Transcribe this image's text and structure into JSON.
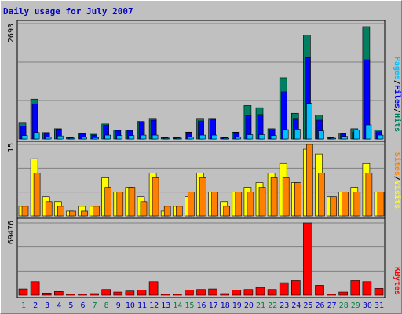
{
  "title": "Daily usage for July 2007",
  "colors": {
    "hits": "#008060",
    "files": "#0000ff",
    "pages": "#00c0ff",
    "visits": "#ffff00",
    "sites": "#ff8000",
    "kbytes": "#ff0000",
    "axis_text": "#000000",
    "weekend_text": "#008040",
    "weekday_text": "#0000c0"
  },
  "legends": {
    "top": [
      {
        "label": "Pages",
        "color": "#00c0ff"
      },
      {
        "label": "/",
        "color": "#000000"
      },
      {
        "label": "Files",
        "color": "#0000ff"
      },
      {
        "label": "/",
        "color": "#000000"
      },
      {
        "label": "Hits",
        "color": "#008060"
      }
    ],
    "middle": [
      {
        "label": "Sites",
        "color": "#ff8000"
      },
      {
        "label": "/",
        "color": "#000000"
      },
      {
        "label": "Visits",
        "color": "#ffff00"
      }
    ],
    "bottom": [
      {
        "label": "KBytes",
        "color": "#ff0000"
      }
    ]
  },
  "axis_max_labels": {
    "top": "2693",
    "middle": "15",
    "bottom": "69476"
  },
  "days": [
    "1",
    "2",
    "3",
    "4",
    "5",
    "6",
    "7",
    "8",
    "9",
    "10",
    "11",
    "12",
    "13",
    "14",
    "15",
    "16",
    "17",
    "18",
    "19",
    "20",
    "21",
    "22",
    "23",
    "24",
    "25",
    "26",
    "27",
    "28",
    "29",
    "30",
    "31"
  ],
  "weekend_days": [
    "1",
    "7",
    "8",
    "14",
    "15",
    "21",
    "22",
    "28",
    "29"
  ],
  "chart_data": [
    {
      "type": "bar",
      "title": "Daily usage for July 2007",
      "ylim": [
        0,
        2693
      ],
      "categories": [
        "1",
        "2",
        "3",
        "4",
        "5",
        "6",
        "7",
        "8",
        "9",
        "10",
        "11",
        "12",
        "13",
        "14",
        "15",
        "16",
        "17",
        "18",
        "19",
        "20",
        "21",
        "22",
        "23",
        "24",
        "25",
        "26",
        "27",
        "28",
        "29",
        "30",
        "31"
      ],
      "series": [
        {
          "name": "Hits",
          "values": [
            370,
            930,
            150,
            240,
            30,
            140,
            110,
            350,
            210,
            210,
            410,
            480,
            30,
            30,
            160,
            480,
            480,
            40,
            160,
            780,
            730,
            240,
            1430,
            600,
            2430,
            560,
            30,
            140,
            240,
            2620,
            210
          ]
        },
        {
          "name": "Files",
          "values": [
            300,
            820,
            120,
            230,
            20,
            120,
            90,
            320,
            200,
            200,
            390,
            440,
            20,
            20,
            150,
            420,
            460,
            30,
            150,
            550,
            570,
            220,
            1100,
            480,
            1900,
            440,
            20,
            120,
            160,
            1850,
            170
          ]
        },
        {
          "name": "Pages",
          "values": [
            80,
            150,
            40,
            70,
            10,
            40,
            30,
            90,
            80,
            80,
            90,
            90,
            10,
            10,
            40,
            90,
            90,
            10,
            40,
            100,
            100,
            80,
            220,
            230,
            830,
            190,
            10,
            60,
            210,
            330,
            90
          ]
        }
      ]
    },
    {
      "type": "bar",
      "ylim": [
        0,
        15
      ],
      "categories": [
        "1",
        "2",
        "3",
        "4",
        "5",
        "6",
        "7",
        "8",
        "9",
        "10",
        "11",
        "12",
        "13",
        "14",
        "15",
        "16",
        "17",
        "18",
        "19",
        "20",
        "21",
        "22",
        "23",
        "24",
        "25",
        "26",
        "27",
        "28",
        "29",
        "30",
        "31"
      ],
      "series": [
        {
          "name": "Visits",
          "values": [
            2,
            12,
            4,
            3,
            1,
            2,
            2,
            8,
            5,
            6,
            4,
            9,
            1,
            2,
            4,
            9,
            5,
            3,
            5,
            6,
            7,
            9,
            11,
            7,
            14,
            13,
            4,
            5,
            6,
            11,
            5
          ]
        },
        {
          "name": "Sites",
          "values": [
            2,
            9,
            3,
            2,
            1,
            1,
            2,
            6,
            5,
            6,
            3,
            8,
            2,
            2,
            5,
            8,
            5,
            2,
            5,
            5,
            6,
            8,
            8,
            7,
            15,
            9,
            4,
            5,
            5,
            9,
            5
          ]
        }
      ]
    },
    {
      "type": "bar",
      "ylim": [
        0,
        69476
      ],
      "categories": [
        "1",
        "2",
        "3",
        "4",
        "5",
        "6",
        "7",
        "8",
        "9",
        "10",
        "11",
        "12",
        "13",
        "14",
        "15",
        "16",
        "17",
        "18",
        "19",
        "20",
        "21",
        "22",
        "23",
        "24",
        "25",
        "26",
        "27",
        "28",
        "29",
        "30",
        "31"
      ],
      "series": [
        {
          "name": "KBytes",
          "values": [
            6000,
            13000,
            2000,
            3500,
            1000,
            1200,
            1500,
            5500,
            3000,
            4000,
            5000,
            13000,
            1200,
            1200,
            5000,
            5500,
            6000,
            1500,
            5000,
            5500,
            7500,
            5500,
            12000,
            14000,
            69476,
            9500,
            1000,
            3000,
            14000,
            13000,
            6500
          ]
        }
      ]
    }
  ]
}
